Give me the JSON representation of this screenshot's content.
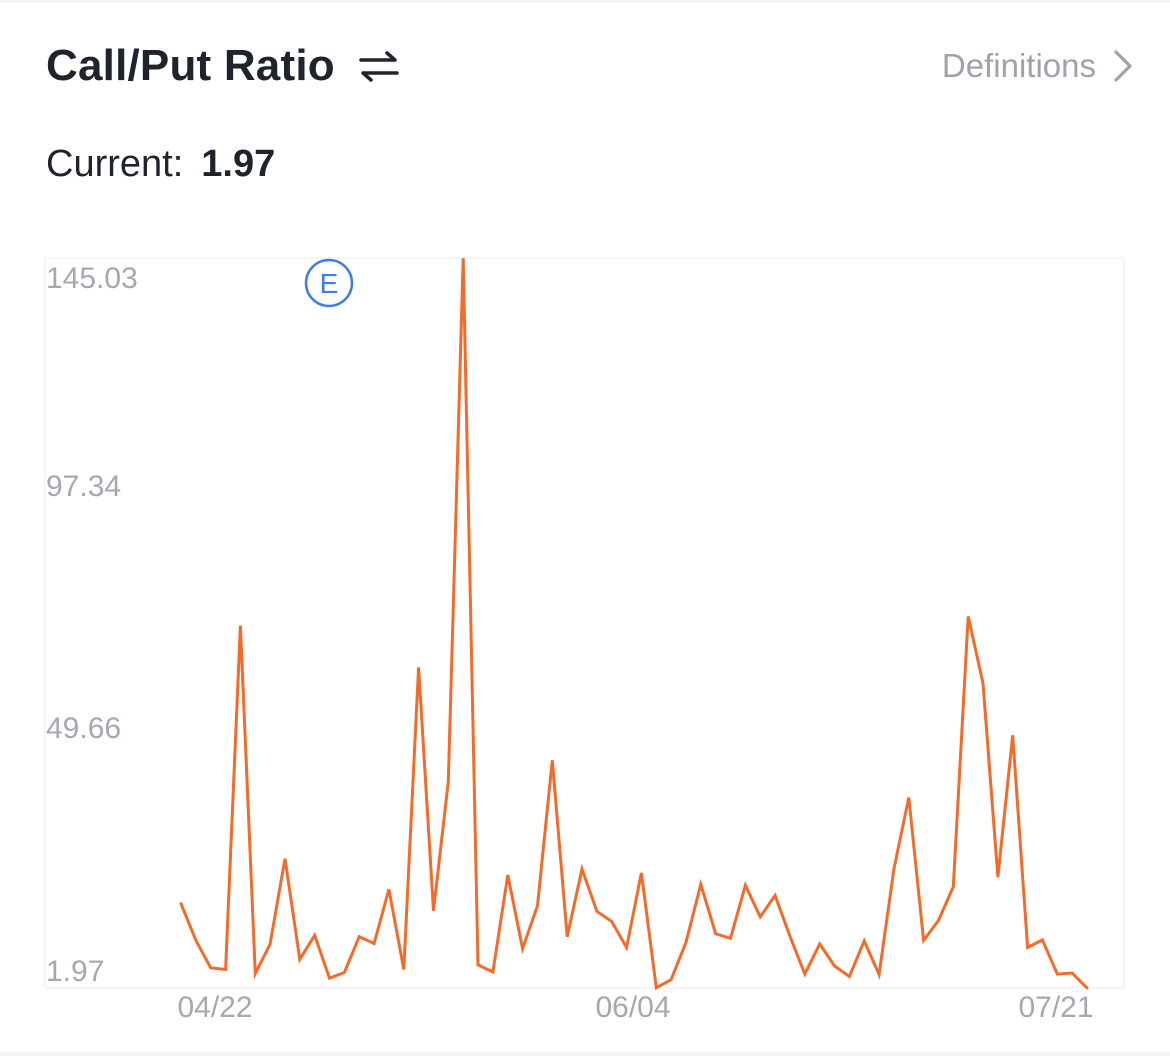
{
  "header": {
    "title": "Call/Put Ratio",
    "swap_icon": "swap-arrows-icon",
    "definitions_label": "Definitions",
    "definitions_icon": "chevron-right-icon"
  },
  "current": {
    "label": "Current:",
    "value": "1.97"
  },
  "colors": {
    "line": "#f26b2a",
    "earnings_marker": "#3d7de8",
    "axis_text": "#a4a8b0",
    "title": "#1f232b"
  },
  "chart_data": {
    "type": "line",
    "title": "",
    "xlabel": "",
    "ylabel": "",
    "ylim": [
      1.97,
      145.03
    ],
    "y_ticks": [
      "145.03",
      "97.34",
      "49.66",
      "1.97"
    ],
    "x_ticks": [
      "04/22",
      "06/04",
      "07/21"
    ],
    "earnings_marker": {
      "label": "E",
      "near_x_tick": "04/22"
    },
    "grid": false,
    "series": [
      {
        "values": [
          18.5,
          11.3,
          5.9,
          5.6,
          73.0,
          4.8,
          10.6,
          27.3,
          7.6,
          12.3,
          3.9,
          5.0,
          12.0,
          10.7,
          21.3,
          5.6,
          64.8,
          17.1,
          42.4,
          145.0,
          6.5,
          5.1,
          24.1,
          9.7,
          18.1,
          46.6,
          12.0,
          25.3,
          17.0,
          15.0,
          9.9,
          24.5,
          2.0,
          3.6,
          10.9,
          22.3,
          12.6,
          11.7,
          22.1,
          15.9,
          20.1,
          12.1,
          4.7,
          10.6,
          6.3,
          4.2,
          11.2,
          4.6,
          25.3,
          39.3,
          11.3,
          15.2,
          21.8,
          74.8,
          61.7,
          23.7,
          51.5,
          9.9,
          11.4,
          4.7,
          4.9,
          1.97
        ]
      }
    ]
  }
}
